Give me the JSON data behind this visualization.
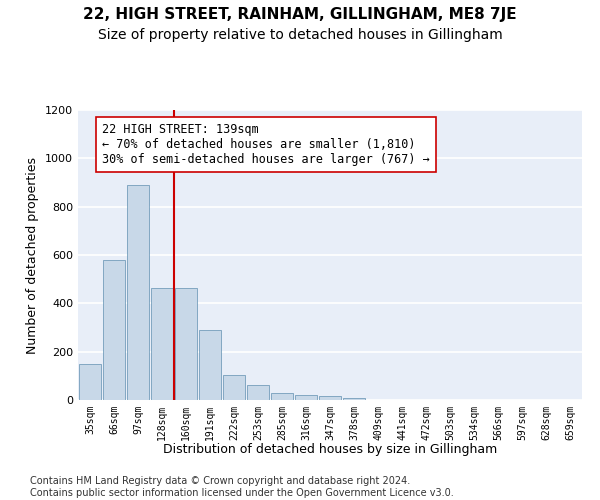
{
  "title": "22, HIGH STREET, RAINHAM, GILLINGHAM, ME8 7JE",
  "subtitle": "Size of property relative to detached houses in Gillingham",
  "xlabel": "Distribution of detached houses by size in Gillingham",
  "ylabel": "Number of detached properties",
  "bar_values": [
    150,
    580,
    890,
    465,
    465,
    290,
    105,
    63,
    30,
    20,
    15,
    10,
    0,
    0,
    0,
    0,
    0,
    0,
    0,
    0,
    0
  ],
  "bar_labels": [
    "35sqm",
    "66sqm",
    "97sqm",
    "128sqm",
    "160sqm",
    "191sqm",
    "222sqm",
    "253sqm",
    "285sqm",
    "316sqm",
    "347sqm",
    "378sqm",
    "409sqm",
    "441sqm",
    "472sqm",
    "503sqm",
    "534sqm",
    "566sqm",
    "597sqm",
    "628sqm",
    "659sqm"
  ],
  "bar_color": "#c8d8e8",
  "bar_edge_color": "#6090b0",
  "ylim": [
    0,
    1200
  ],
  "yticks": [
    0,
    200,
    400,
    600,
    800,
    1000,
    1200
  ],
  "property_line_x": 3.5,
  "property_line_color": "#cc0000",
  "annotation_text": "22 HIGH STREET: 139sqm\n← 70% of detached houses are smaller (1,810)\n30% of semi-detached houses are larger (767) →",
  "background_color": "#e8eef8",
  "grid_color": "#ffffff",
  "footer_text": "Contains HM Land Registry data © Crown copyright and database right 2024.\nContains public sector information licensed under the Open Government Licence v3.0.",
  "title_fontsize": 11,
  "subtitle_fontsize": 10,
  "xlabel_fontsize": 9,
  "ylabel_fontsize": 9,
  "annotation_fontsize": 8.5,
  "footer_fontsize": 7
}
